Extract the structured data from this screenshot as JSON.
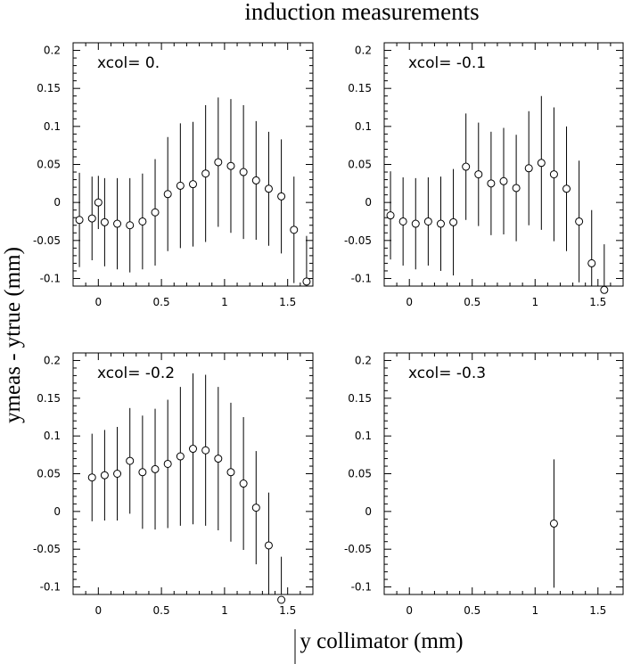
{
  "title": "induction measurements",
  "xlabel": "y collimator (mm)",
  "ylabel": "ymeas - ytrue (mm)",
  "chart_data": [
    {
      "type": "scatter",
      "label": "xcol= 0.",
      "xlim": [
        -0.2,
        1.7
      ],
      "ylim": [
        -0.11,
        0.21
      ],
      "x_ticks": [
        "0",
        "0.5",
        "1",
        "1.5"
      ],
      "y_ticks": [
        "-0.1",
        "-0.05",
        "0",
        "0.05",
        "0.1",
        "0.15",
        "0.2"
      ],
      "points": [
        {
          "x": -0.15,
          "y": -0.023,
          "err": 0.062
        },
        {
          "x": -0.05,
          "y": -0.021,
          "err": 0.055
        },
        {
          "x": 0.0,
          "y": 0.0,
          "err": 0.035
        },
        {
          "x": 0.05,
          "y": -0.026,
          "err": 0.058
        },
        {
          "x": 0.15,
          "y": -0.028,
          "err": 0.06
        },
        {
          "x": 0.25,
          "y": -0.03,
          "err": 0.062
        },
        {
          "x": 0.35,
          "y": -0.025,
          "err": 0.063
        },
        {
          "x": 0.45,
          "y": -0.013,
          "err": 0.07
        },
        {
          "x": 0.55,
          "y": 0.011,
          "err": 0.075
        },
        {
          "x": 0.65,
          "y": 0.022,
          "err": 0.082
        },
        {
          "x": 0.75,
          "y": 0.024,
          "err": 0.082
        },
        {
          "x": 0.85,
          "y": 0.038,
          "err": 0.09
        },
        {
          "x": 0.95,
          "y": 0.053,
          "err": 0.085
        },
        {
          "x": 1.05,
          "y": 0.048,
          "err": 0.088
        },
        {
          "x": 1.15,
          "y": 0.04,
          "err": 0.088
        },
        {
          "x": 1.25,
          "y": 0.029,
          "err": 0.078
        },
        {
          "x": 1.35,
          "y": 0.018,
          "err": 0.075
        },
        {
          "x": 1.45,
          "y": 0.008,
          "err": 0.075
        },
        {
          "x": 1.55,
          "y": -0.036,
          "err": 0.07
        },
        {
          "x": 1.65,
          "y": -0.104,
          "err": 0.06
        }
      ]
    },
    {
      "type": "scatter",
      "label": "xcol= -0.1",
      "xlim": [
        -0.2,
        1.7
      ],
      "ylim": [
        -0.11,
        0.21
      ],
      "x_ticks": [
        "0",
        "0.5",
        "1",
        "1.5"
      ],
      "y_ticks": [
        "-0.1",
        "-0.05",
        "0",
        "0.05",
        "0.1",
        "0.15",
        "0.2"
      ],
      "points": [
        {
          "x": -0.15,
          "y": -0.017,
          "err": 0.058
        },
        {
          "x": -0.05,
          "y": -0.025,
          "err": 0.058
        },
        {
          "x": 0.05,
          "y": -0.028,
          "err": 0.06
        },
        {
          "x": 0.15,
          "y": -0.025,
          "err": 0.058
        },
        {
          "x": 0.25,
          "y": -0.028,
          "err": 0.062
        },
        {
          "x": 0.35,
          "y": -0.026,
          "err": 0.07
        },
        {
          "x": 0.45,
          "y": 0.047,
          "err": 0.07
        },
        {
          "x": 0.55,
          "y": 0.037,
          "err": 0.068
        },
        {
          "x": 0.65,
          "y": 0.025,
          "err": 0.068
        },
        {
          "x": 0.75,
          "y": 0.028,
          "err": 0.07
        },
        {
          "x": 0.85,
          "y": 0.019,
          "err": 0.07
        },
        {
          "x": 0.95,
          "y": 0.045,
          "err": 0.075
        },
        {
          "x": 1.05,
          "y": 0.052,
          "err": 0.088
        },
        {
          "x": 1.15,
          "y": 0.037,
          "err": 0.088
        },
        {
          "x": 1.25,
          "y": 0.018,
          "err": 0.082
        },
        {
          "x": 1.35,
          "y": -0.025,
          "err": 0.08
        },
        {
          "x": 1.45,
          "y": -0.08,
          "err": 0.07
        },
        {
          "x": 1.55,
          "y": -0.115,
          "err": 0.06
        }
      ]
    },
    {
      "type": "scatter",
      "label": "xcol= -0.2",
      "xlim": [
        -0.2,
        1.7
      ],
      "ylim": [
        -0.11,
        0.21
      ],
      "x_ticks": [
        "0",
        "0.5",
        "1",
        "1.5"
      ],
      "y_ticks": [
        "-0.1",
        "-0.05",
        "0",
        "0.05",
        "0.1",
        "0.15",
        "0.2"
      ],
      "points": [
        {
          "x": -0.05,
          "y": 0.045,
          "err": 0.058
        },
        {
          "x": 0.05,
          "y": 0.048,
          "err": 0.06
        },
        {
          "x": 0.15,
          "y": 0.05,
          "err": 0.062
        },
        {
          "x": 0.25,
          "y": 0.067,
          "err": 0.07
        },
        {
          "x": 0.35,
          "y": 0.052,
          "err": 0.075
        },
        {
          "x": 0.45,
          "y": 0.056,
          "err": 0.08
        },
        {
          "x": 0.55,
          "y": 0.063,
          "err": 0.085
        },
        {
          "x": 0.65,
          "y": 0.073,
          "err": 0.092
        },
        {
          "x": 0.75,
          "y": 0.083,
          "err": 0.1
        },
        {
          "x": 0.85,
          "y": 0.081,
          "err": 0.1
        },
        {
          "x": 0.95,
          "y": 0.07,
          "err": 0.095
        },
        {
          "x": 1.05,
          "y": 0.052,
          "err": 0.092
        },
        {
          "x": 1.15,
          "y": 0.037,
          "err": 0.088
        },
        {
          "x": 1.25,
          "y": 0.005,
          "err": 0.075
        },
        {
          "x": 1.35,
          "y": -0.045,
          "err": 0.07
        },
        {
          "x": 1.45,
          "y": -0.12,
          "err": 0.06
        }
      ]
    },
    {
      "type": "scatter",
      "label": "xcol= -0.3",
      "xlim": [
        -0.2,
        1.7
      ],
      "ylim": [
        -0.11,
        0.21
      ],
      "x_ticks": [
        "0",
        "0.5",
        "1",
        "1.5"
      ],
      "y_ticks": [
        "-0.1",
        "-0.05",
        "0",
        "0.05",
        "0.1",
        "0.15",
        "0.2"
      ],
      "points": [
        {
          "x": 1.15,
          "y": -0.016,
          "err": 0.085
        }
      ]
    }
  ]
}
